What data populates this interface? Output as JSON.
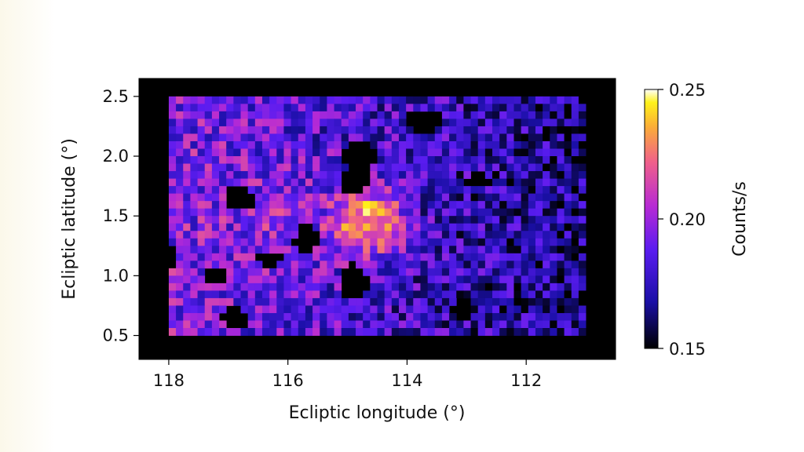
{
  "colors": {
    "figure_background": "#ffffff",
    "frame_background": "#000000",
    "colormap": "plasma / gnuplot2-like (black → blue → purple → pink → orange → yellow → white)"
  },
  "chart_data": {
    "type": "heatmap",
    "title": "",
    "xlabel": "Ecliptic longitude (°)",
    "ylabel": "Ecliptic latitude (°)",
    "xlim": [
      118.5,
      110.5
    ],
    "ylim": [
      0.3,
      2.65
    ],
    "x_inverted": true,
    "data_extent": {
      "x": [
        118,
        111
      ],
      "y": [
        0.5,
        2.5
      ]
    },
    "grid": {
      "cols": 58,
      "rows": 32,
      "pixel_size_deg": 0.12
    },
    "x_ticks": [
      {
        "value": 118,
        "label": "118"
      },
      {
        "value": 116,
        "label": "116"
      },
      {
        "value": 114,
        "label": "114"
      },
      {
        "value": 112,
        "label": "112"
      }
    ],
    "y_ticks": [
      {
        "value": 0.5,
        "label": "0.5"
      },
      {
        "value": 1.0,
        "label": "1.0"
      },
      {
        "value": 1.5,
        "label": "1.5"
      },
      {
        "value": 2.0,
        "label": "2.0"
      },
      {
        "value": 2.5,
        "label": "2.5"
      }
    ],
    "colorbar": {
      "label": "Counts/s",
      "range": [
        0.15,
        0.25
      ],
      "ticks": [
        {
          "value": 0.25,
          "label": "0.25"
        },
        {
          "value": 0.2,
          "label": "0.20"
        },
        {
          "value": 0.15,
          "label": "0.15"
        }
      ]
    },
    "peak": {
      "x": 114.6,
      "y": 1.45,
      "value": 0.25
    },
    "background_level": {
      "west_side_x118_116": 0.195,
      "east_side_x112_111": 0.165
    },
    "masked_regions": [
      {
        "x": 113.7,
        "y": 2.3,
        "rx": 0.35,
        "ry": 0.1
      },
      {
        "x": 114.8,
        "y": 2.0,
        "rx": 0.3,
        "ry": 0.12
      },
      {
        "x": 114.9,
        "y": 1.8,
        "rx": 0.25,
        "ry": 0.1
      },
      {
        "x": 116.8,
        "y": 1.65,
        "rx": 0.25,
        "ry": 0.1
      },
      {
        "x": 115.7,
        "y": 1.3,
        "rx": 0.2,
        "ry": 0.12
      },
      {
        "x": 116.3,
        "y": 1.15,
        "rx": 0.25,
        "ry": 0.07
      },
      {
        "x": 117.2,
        "y": 1.0,
        "rx": 0.2,
        "ry": 0.07
      },
      {
        "x": 114.9,
        "y": 0.95,
        "rx": 0.25,
        "ry": 0.15
      },
      {
        "x": 116.9,
        "y": 0.65,
        "rx": 0.25,
        "ry": 0.08
      },
      {
        "x": 113.1,
        "y": 0.72,
        "rx": 0.2,
        "ry": 0.08
      },
      {
        "x": 112.8,
        "y": 1.8,
        "rx": 0.2,
        "ry": 0.08
      },
      {
        "x": 118.0,
        "y": 1.15,
        "rx": 0.1,
        "ry": 0.12
      }
    ]
  }
}
